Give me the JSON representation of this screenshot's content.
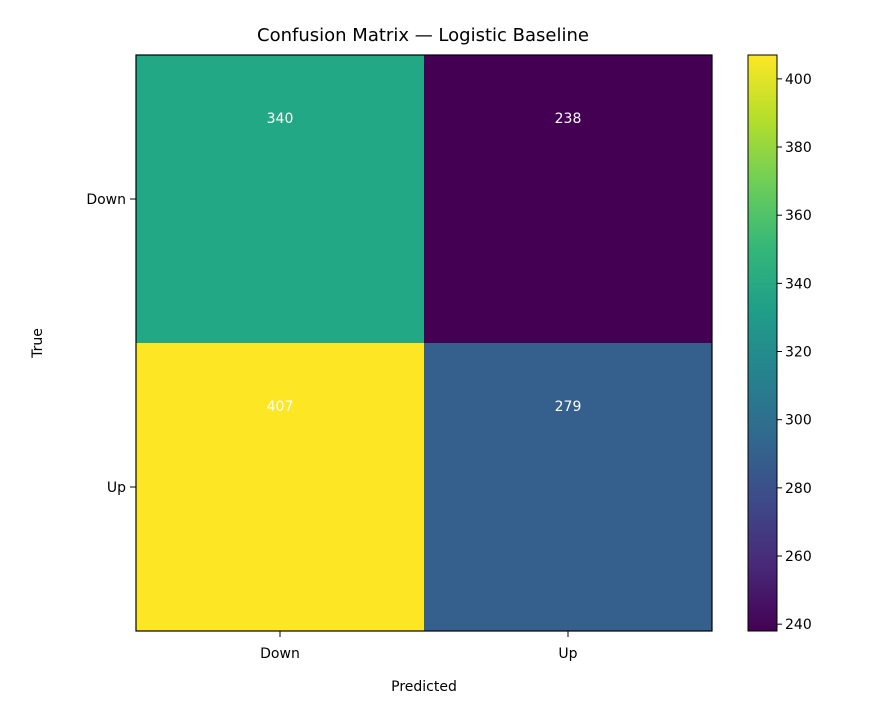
{
  "chart_data": {
    "type": "heatmap",
    "title": "Confusion Matrix — Logistic Baseline",
    "xlabel": "Predicted",
    "ylabel": "True",
    "x_categories": [
      "Down",
      "Up"
    ],
    "y_categories": [
      "Down",
      "Up"
    ],
    "values": [
      [
        340,
        238
      ],
      [
        407,
        279
      ]
    ],
    "colormap": "viridis",
    "colorbar": {
      "range": [
        238,
        407
      ],
      "ticks": [
        240,
        260,
        280,
        300,
        320,
        340,
        360,
        380,
        400
      ]
    },
    "colors": {
      "340": "#22a884",
      "238": "#440154",
      "407": "#fde725",
      "279": "#355f8d"
    },
    "legend": "colorbar-right",
    "grid": false
  }
}
